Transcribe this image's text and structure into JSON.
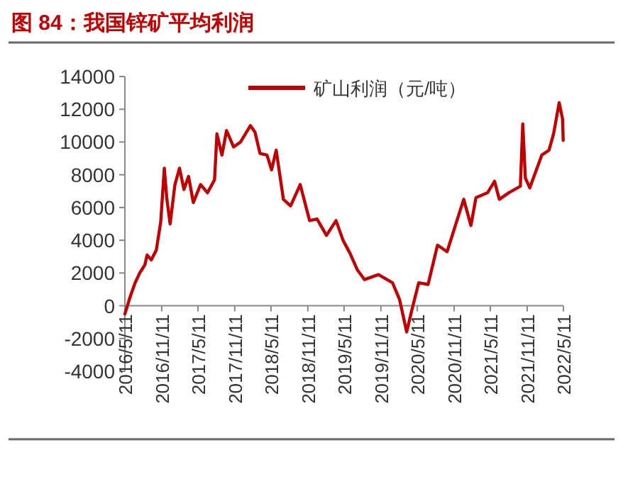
{
  "chart_data": {
    "type": "line",
    "title": "图 84：我国锌矿平均利润",
    "x": [
      "2016-05-11",
      "2016-06-05",
      "2016-07-01",
      "2016-07-24",
      "2016-08-19",
      "2016-08-30",
      "2016-09-20",
      "2016-10-15",
      "2016-11-06",
      "2016-11-24",
      "2016-12-06",
      "2016-12-23",
      "2017-01-16",
      "2017-02-08",
      "2017-03-02",
      "2017-03-25",
      "2017-04-18",
      "2017-05-24",
      "2017-06-28",
      "2017-08-02",
      "2017-08-14",
      "2017-09-08",
      "2017-10-01",
      "2017-11-05",
      "2017-12-10",
      "2018-01-28",
      "2018-02-20",
      "2018-03-17",
      "2018-04-21",
      "2018-05-14",
      "2018-06-06",
      "2018-07-12",
      "2018-08-17",
      "2018-10-04",
      "2018-11-20",
      "2018-12-27",
      "2019-02-12",
      "2019-04-01",
      "2019-05-06",
      "2019-06-10",
      "2019-07-16",
      "2019-08-21",
      "2019-10-30",
      "2020-01-08",
      "2020-02-12",
      "2020-03-19",
      "2020-04-13",
      "2020-05-18",
      "2020-07-04",
      "2020-08-20",
      "2020-10-07",
      "2020-11-25",
      "2020-12-29",
      "2021-02-03",
      "2021-02-28",
      "2021-04-27",
      "2021-06-01",
      "2021-06-25",
      "2021-08-11",
      "2021-10-08",
      "2021-10-20",
      "2021-11-02",
      "2021-11-24",
      "2021-12-30",
      "2022-01-23",
      "2022-02-28",
      "2022-03-23",
      "2022-04-20",
      "2022-05-07",
      "2022-05-10"
    ],
    "series": [
      {
        "name": "矿山利润（元/吨）",
        "color": "#c00000",
        "values": [
          -500,
          500,
          1400,
          2000,
          2500,
          3100,
          2800,
          3400,
          5100,
          8400,
          6600,
          5000,
          7400,
          8400,
          7100,
          7900,
          6300,
          7400,
          6900,
          7700,
          10500,
          9200,
          10700,
          9700,
          10000,
          11000,
          10600,
          9300,
          9200,
          8300,
          9500,
          6500,
          6100,
          7400,
          5200,
          5300,
          4300,
          5200,
          4000,
          3200,
          2200,
          1600,
          1900,
          1400,
          400,
          -1600,
          -300,
          1400,
          1300,
          3700,
          3300,
          5200,
          6500,
          4900,
          6600,
          6900,
          7600,
          6500,
          6900,
          7300,
          11100,
          7800,
          7200,
          8400,
          9200,
          9500,
          10500,
          12400,
          11400,
          10100
        ]
      }
    ],
    "xlim": [
      "2016-05-11",
      "2022-05-11"
    ],
    "xticks": [
      {
        "value": "2016-05-11",
        "label": "2016/5/11"
      },
      {
        "value": "2016-11-11",
        "label": "2016/11/11"
      },
      {
        "value": "2017-05-11",
        "label": "2017/5/11"
      },
      {
        "value": "2017-11-11",
        "label": "2017/11/11"
      },
      {
        "value": "2018-05-11",
        "label": "2018/5/11"
      },
      {
        "value": "2018-11-11",
        "label": "2018/11/11"
      },
      {
        "value": "2019-05-11",
        "label": "2019/5/11"
      },
      {
        "value": "2019-11-11",
        "label": "2019/11/11"
      },
      {
        "value": "2020-05-11",
        "label": "2020/5/11"
      },
      {
        "value": "2020-11-11",
        "label": "2020/11/11"
      },
      {
        "value": "2021-05-11",
        "label": "2021/5/11"
      },
      {
        "value": "2021-11-11",
        "label": "2021/11/11"
      },
      {
        "value": "2022-05-11",
        "label": "2022/5/11"
      }
    ],
    "ylim": [
      -4000,
      14000
    ],
    "yticks": [
      -4000,
      -2000,
      0,
      2000,
      4000,
      6000,
      8000,
      10000,
      12000,
      14000
    ],
    "legend": "top"
  }
}
